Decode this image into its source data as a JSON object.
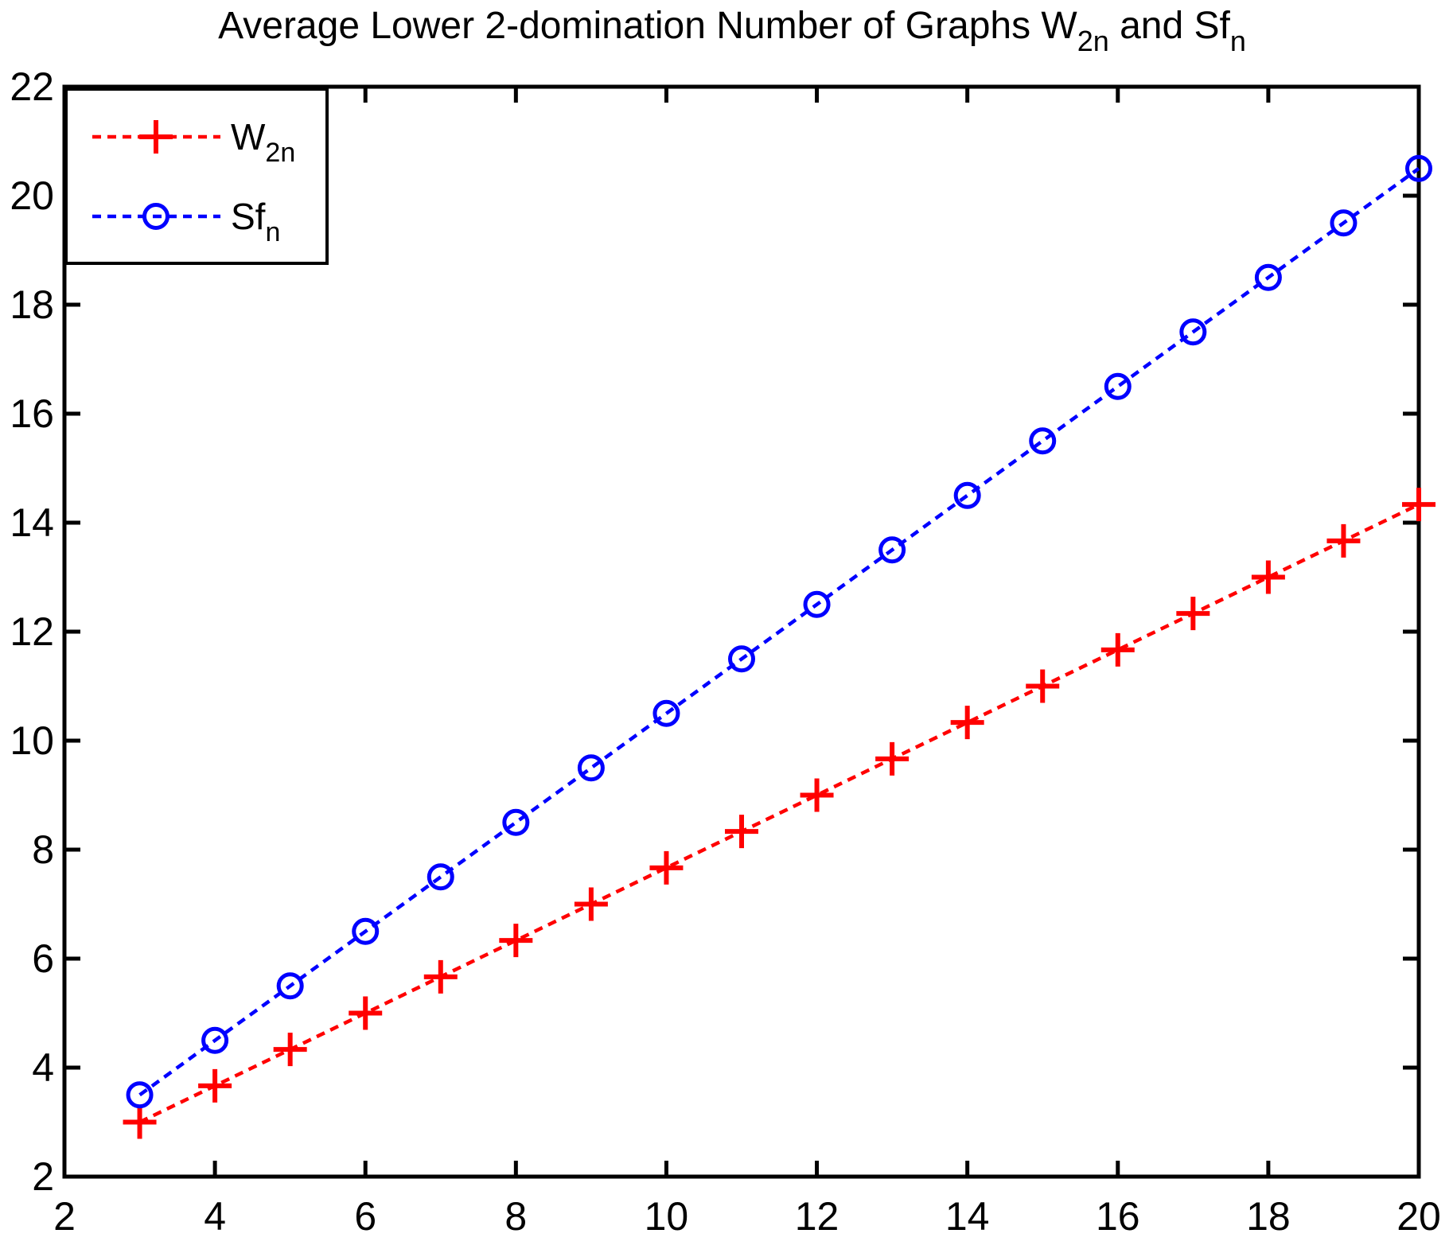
{
  "chart_data": {
    "type": "line",
    "title_parts": [
      {
        "text": "Average Lower 2-domination Number of Graphs W"
      },
      {
        "sub": "2n"
      },
      {
        "text": " and Sf"
      },
      {
        "sub": "n"
      }
    ],
    "title_plain": "Average Lower 2-domination Number of Graphs W2n and Sfn",
    "x": [
      3,
      4,
      5,
      6,
      7,
      8,
      9,
      10,
      11,
      12,
      13,
      14,
      15,
      16,
      17,
      18,
      19,
      20
    ],
    "series": [
      {
        "id": "W2n",
        "label_parts": [
          {
            "text": "W"
          },
          {
            "sub": "2n"
          }
        ],
        "color": "#ff0000",
        "marker": "plus",
        "line_style": "dotted",
        "values": [
          3,
          3.6667,
          4.3333,
          5,
          5.6667,
          6.3333,
          7,
          7.6667,
          8.3333,
          9,
          9.6667,
          10.3333,
          11,
          11.6667,
          12.3333,
          13,
          13.6667,
          14.3333
        ]
      },
      {
        "id": "Sfn",
        "label_parts": [
          {
            "text": "Sf"
          },
          {
            "sub": "n"
          }
        ],
        "color": "#0000ff",
        "marker": "circle",
        "line_style": "dotted",
        "values": [
          3.5,
          4.5,
          5.5,
          6.5,
          7.5,
          8.5,
          9.5,
          10.5,
          11.5,
          12.5,
          13.5,
          14.5,
          15.5,
          16.5,
          17.5,
          18.5,
          19.5,
          20.5
        ]
      }
    ],
    "xlim": [
      2,
      20
    ],
    "ylim": [
      2,
      22
    ],
    "xticks": [
      2,
      4,
      6,
      8,
      10,
      12,
      14,
      16,
      18,
      20
    ],
    "yticks": [
      2,
      4,
      6,
      8,
      10,
      12,
      14,
      16,
      18,
      20,
      22
    ],
    "xlabel": "",
    "ylabel": "",
    "grid": false,
    "legend_position": "northwest",
    "axis_color": "#000000",
    "background_color": "#ffffff"
  }
}
